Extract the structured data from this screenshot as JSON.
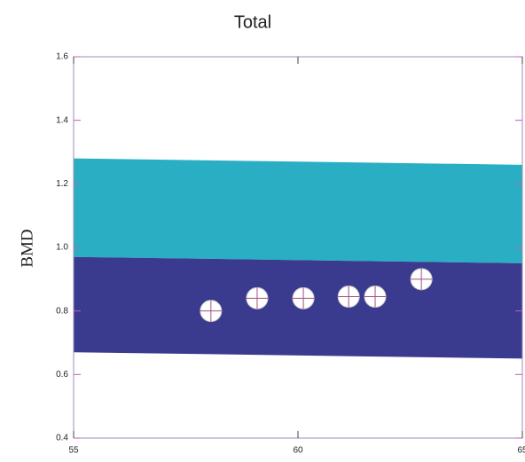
{
  "chart_data": {
    "type": "scatter",
    "title": "Total",
    "y_label": "BMD",
    "xlim": [
      55,
      65
    ],
    "xticks": [
      55,
      60,
      65
    ],
    "ylim": [
      0.4,
      1.6
    ],
    "yticks": [
      0.4,
      0.6,
      0.8,
      {
        "value": 1.0,
        "label": "1.0"
      },
      1.2,
      1.4,
      1.6
    ],
    "bands": [
      {
        "color": "#29aec4",
        "x": [
          55,
          65
        ],
        "upper": [
          1.28,
          1.26
        ],
        "lower": [
          0.97,
          0.95
        ]
      },
      {
        "color": "#3a3a8f",
        "x": [
          55,
          65
        ],
        "upper": [
          0.97,
          0.95
        ],
        "lower": [
          0.67,
          0.65
        ]
      }
    ],
    "series": [
      {
        "color": "#ffffff",
        "x": [
          58.06,
          59.09,
          60.12,
          61.13,
          61.72,
          62.75
        ],
        "values": [
          0.8,
          0.84,
          0.84,
          0.845,
          0.845,
          0.9
        ]
      }
    ]
  }
}
